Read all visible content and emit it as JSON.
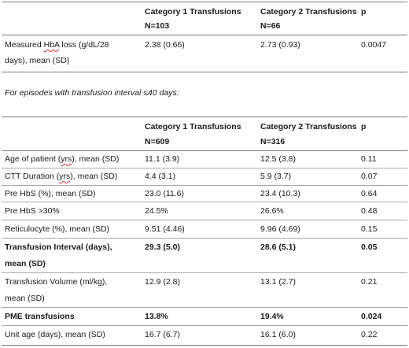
{
  "table1": {
    "col1": "Category 1 Transfusions",
    "col2": "Category 2 Transfusions",
    "col3": "p",
    "n1": "N=103",
    "n2": "N=66",
    "row": {
      "label_a": "Measured ",
      "label_b": "HbA",
      "label_c": " loss (g/dL/28",
      "label_line2": "days), mean (SD)",
      "v1": "2.38 (0.66)",
      "v2": "2.73 (0.93)",
      "p": "0.0047"
    }
  },
  "note": "For episodes with transfusion interval ≤40 days:",
  "table2": {
    "col1": "Category 1 Transfusions",
    "col2": "Category 2 Transfusions",
    "col3": "p",
    "n1": "N=609",
    "n2": "N=316",
    "rows": [
      {
        "label_a": "Age of patient (",
        "label_b": "yrs",
        "label_c": "), mean (SD)",
        "v1": "11.1 (3.9)",
        "v2": "12.5 (3.8)",
        "p": "0.11"
      },
      {
        "label_a": "CTT Duration (",
        "label_b": "yrs",
        "label_c": "), mean (SD)",
        "v1": "4.4 (3.1)",
        "v2": "5.9 (3.7)",
        "p": "0.07"
      },
      {
        "label": "Pre HbS (%), mean (SD)",
        "v1": "23.0 (11.6)",
        "v2": "23.4 (10.3)",
        "p": "0.64"
      },
      {
        "label": "Pre HbS >30%",
        "v1": "24.5%",
        "v2": "26.6%",
        "p": "0.48"
      },
      {
        "label": "Reticulocyte (%), mean (SD)",
        "v1": "9.51 (4.46)",
        "v2": "9.96 (4.69)",
        "p": "0.15"
      },
      {
        "label": "Transfusion Interval (days),",
        "label_line2": "mean (SD)",
        "v1": "29.3 (5.0)",
        "v2": "28.6 (5.1)",
        "p": "0.05"
      },
      {
        "label": "Transfusion Volume (ml/kg),",
        "label_line2": "mean (SD)",
        "v1": "12.9 (2.8)",
        "v2": "13.1 (2.7)",
        "p": "0.21"
      },
      {
        "label": "PME transfusions",
        "v1": "13.8%",
        "v2": "19.4%",
        "p": "0.024"
      },
      {
        "label": "Unit age (days), mean (SD)",
        "v1": "16.7 (6.7)",
        "v2": "16.1 (6.0)",
        "p": "0.22"
      }
    ]
  }
}
